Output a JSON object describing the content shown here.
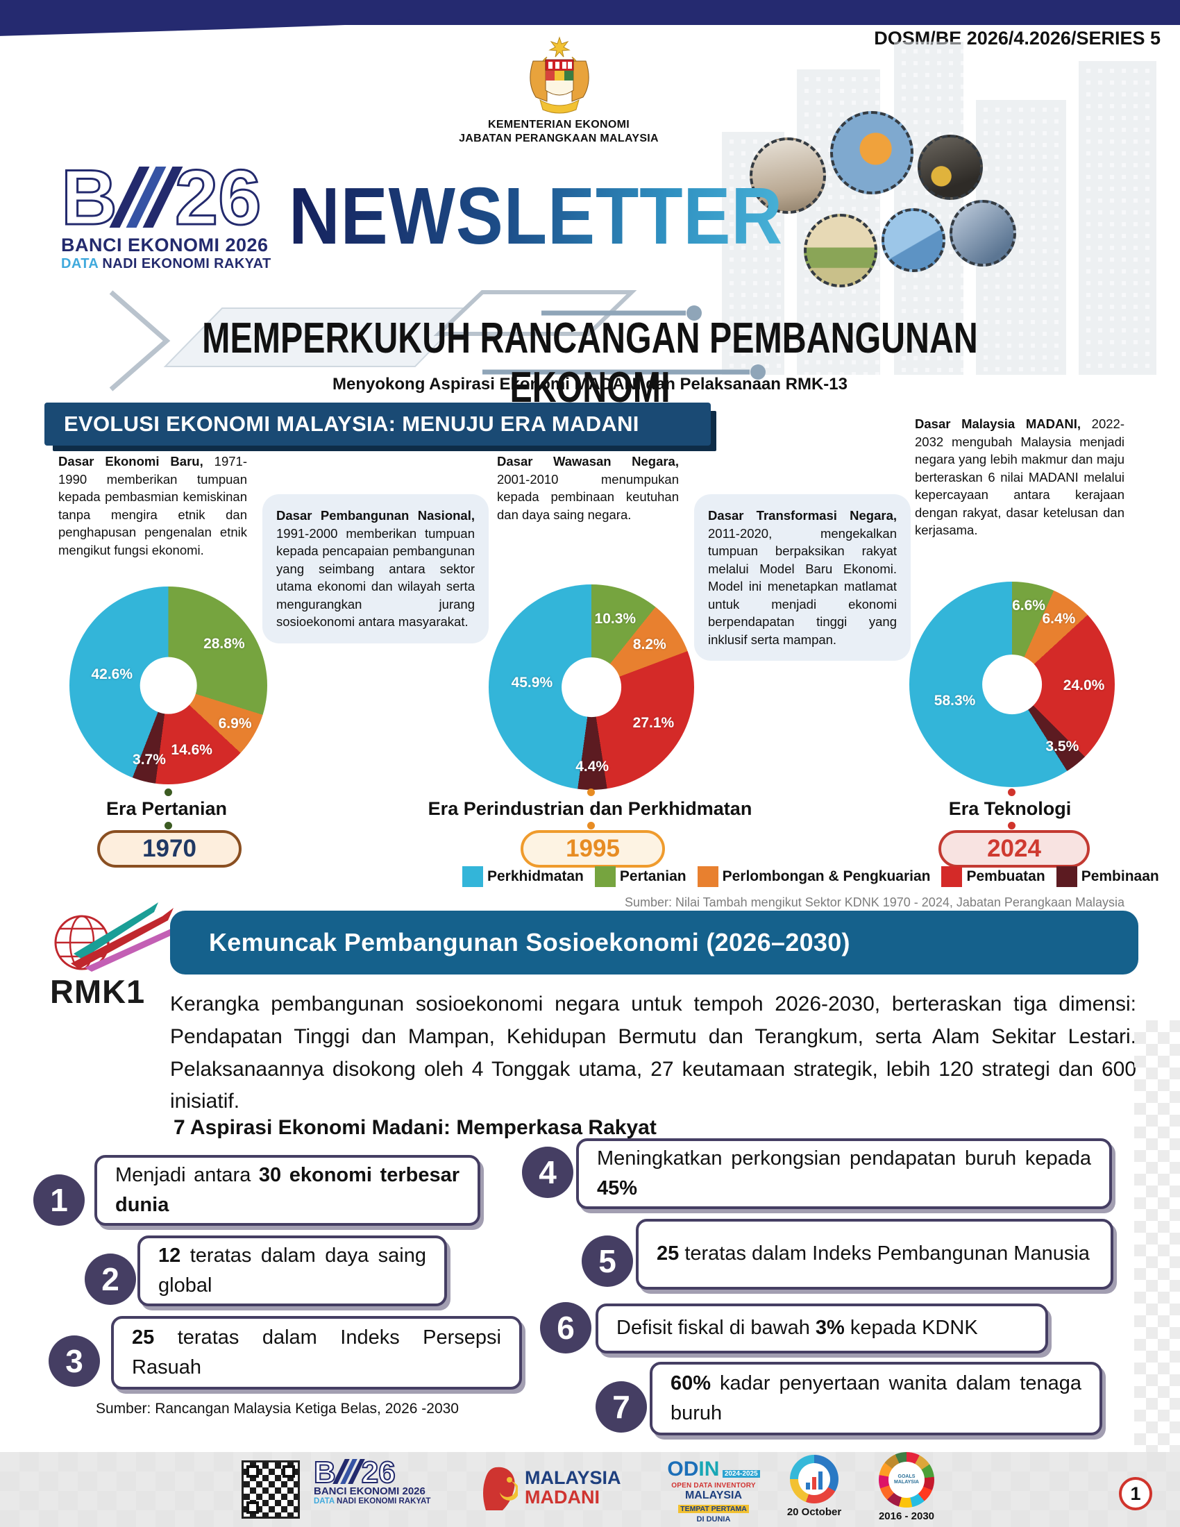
{
  "header": {
    "doc_code": "DOSM/BE 2026/4.2026/SERIES 5",
    "ministry_line1": "KEMENTERIAN EKONOMI",
    "ministry_line2": "JABATAN PERANGKAAN MALAYSIA",
    "newsletter": "NEWSLETTER",
    "be_logo": {
      "b": "B",
      "num": "26",
      "line1": "BANCI EKONOMI 2026",
      "line2_accent": "DATA",
      "line2_rest": " NADI EKONOMI RAKYAT"
    }
  },
  "title": {
    "main": "MEMPERKUKUH RANCANGAN PEMBANGUNAN EKONOMI",
    "subtitle": "Menyokong Aspirasi Ekonomi MADANI dan Pelaksanaan RMK-13"
  },
  "evolusi": {
    "heading": "EVOLUSI EKONOMI MALAYSIA: MENUJU ERA MADANI",
    "policies": [
      {
        "lead": "Dasar Ekonomi Baru,",
        "text": " 1971-1990 memberikan tumpuan kepada pembasmian kemiskinan tanpa mengira etnik dan penghapusan pengenalan etnik mengikut fungsi ekonomi.",
        "boxed": false
      },
      {
        "lead": "Dasar Pembangunan Nasional,",
        "text": " 1991-2000 memberikan tumpuan kepada pencapaian pembangunan yang seimbang antara sektor utama ekonomi dan wilayah serta mengurangkan jurang sosioekonomi antara masyarakat.",
        "boxed": true
      },
      {
        "lead": "Dasar Wawasan Negara,",
        "text": " 2001-2010 menumpukan kepada pembinaan keutuhan dan daya saing negara.",
        "boxed": false
      },
      {
        "lead": "Dasar Transformasi Negara,",
        "text": " 2011-2020, mengekalkan tumpuan berpaksikan rakyat melalui Model Baru Ekonomi. Model ini menetapkan matlamat untuk menjadi ekonomi berpendapatan tinggi yang inklusif serta mampan.",
        "boxed": true
      },
      {
        "lead": "Dasar Malaysia MADANI,",
        "text": " 2022-2032 mengubah Malaysia menjadi negara yang lebih makmur dan maju berteraskan 6 nilai MADANI melalui kepercayaan antara kerajaan dengan rakyat, dasar ketelusan dan kerjasama.",
        "boxed": false
      }
    ],
    "legend": [
      {
        "label": "Perkhidmatan",
        "color": "#33b5d9"
      },
      {
        "label": "Pertanian",
        "color": "#76a43f"
      },
      {
        "label": "Perlombongan & Pengkuarian",
        "color": "#e8802f"
      },
      {
        "label": "Pembuatan",
        "color": "#d42a28"
      },
      {
        "label": "Pembinaan",
        "color": "#5c1b21"
      }
    ],
    "source": "Sumber: Nilai Tambah mengikut Sektor KDNK 1970 - 2024, Jabatan Perangkaan Malaysia"
  },
  "chart_data": [
    {
      "type": "pie",
      "title": "Era Pertanian",
      "era": "Era Pertanian",
      "year": "1970",
      "categories": [
        "Pertanian",
        "Perlombongan & Pengkuarian",
        "Pembuatan",
        "Pembinaan",
        "Perkhidmatan"
      ],
      "values": [
        28.8,
        6.9,
        14.6,
        3.7,
        42.6
      ],
      "colors": [
        "#76a43f",
        "#e8802f",
        "#d42a28",
        "#5c1b21",
        "#33b5d9"
      ],
      "accent": "#3c5b22",
      "pill": {
        "border": "#8a4f21",
        "bg": "#fdeedd",
        "text": "#1f3864"
      }
    },
    {
      "type": "pie",
      "title": "Era Perindustrian dan Perkhidmatan",
      "era": "Era Perindustrian dan Perkhidmatan",
      "year": "1995",
      "categories": [
        "Pertanian",
        "Perlombongan & Pengkuarian",
        "Pembuatan",
        "Pembinaan",
        "Perkhidmatan"
      ],
      "values": [
        10.3,
        8.2,
        27.1,
        4.4,
        45.9
      ],
      "colors": [
        "#76a43f",
        "#e8802f",
        "#d42a28",
        "#5c1b21",
        "#33b5d9"
      ],
      "accent": "#e78c23",
      "pill": {
        "border": "#ef9b2d",
        "bg": "#fdf3e3",
        "text": "#e78c23"
      }
    },
    {
      "type": "pie",
      "title": "Era Teknologi",
      "era": "Era Teknologi",
      "year": "2024",
      "categories": [
        "Pertanian",
        "Perlombongan & Pengkuarian",
        "Pembuatan",
        "Pembinaan",
        "Perkhidmatan"
      ],
      "values": [
        6.6,
        6.4,
        24.0,
        3.5,
        58.3
      ],
      "colors": [
        "#76a43f",
        "#e8802f",
        "#d42a28",
        "#5c1b21",
        "#33b5d9"
      ],
      "accent": "#d0342c",
      "pill": {
        "border": "#c33a32",
        "bg": "#f8e3e1",
        "text": "#cf3a30"
      }
    }
  ],
  "rmk": {
    "logo_text": "RMK1",
    "heading": "Kemuncak Pembangunan Sosioekonomi (2026–2030)",
    "paragraph": "Kerangka pembangunan sosioekonomi negara untuk tempoh 2026-2030, berteraskan tiga dimensi: Pendapatan Tinggi dan Mampan, Kehidupan Bermutu dan Terangkum, serta Alam Sekitar Lestari. Pelaksanaannya disokong oleh 4 Tonggak utama, 27 keutamaan strategik, lebih 120 strategi dan 600 inisiatif.",
    "subheading": "7 Aspirasi Ekonomi Madani: Memperkasa Rakyat",
    "aspirations": [
      {
        "num": "1",
        "segments": [
          {
            "t": "Menjadi antara ",
            "b": false
          },
          {
            "t": "30 ekonomi terbesar dunia",
            "b": true
          }
        ]
      },
      {
        "num": "2",
        "segments": [
          {
            "t": "12",
            "b": true
          },
          {
            "t": " teratas dalam daya saing global",
            "b": false
          }
        ]
      },
      {
        "num": "3",
        "segments": [
          {
            "t": "25",
            "b": true
          },
          {
            "t": " teratas dalam Indeks Persepsi Rasuah",
            "b": false
          }
        ]
      },
      {
        "num": "4",
        "segments": [
          {
            "t": "Meningkatkan perkongsian pendapatan buruh kepada ",
            "b": false
          },
          {
            "t": "45%",
            "b": true
          }
        ]
      },
      {
        "num": "5",
        "segments": [
          {
            "t": "25",
            "b": true
          },
          {
            "t": " teratas dalam Indeks Pembangunan Manusia",
            "b": false
          }
        ]
      },
      {
        "num": "6",
        "segments": [
          {
            "t": "Defisit fiskal di bawah ",
            "b": false
          },
          {
            "t": "3%",
            "b": true
          },
          {
            "t": " kepada KDNK",
            "b": false
          }
        ]
      },
      {
        "num": "7",
        "segments": [
          {
            "t": "60%",
            "b": true
          },
          {
            "t": " kadar penyertaan wanita dalam tenaga buruh",
            "b": false
          }
        ]
      }
    ],
    "source": "Sumber: Rancangan Malaysia Ketiga Belas, 2026 -2030"
  },
  "footer": {
    "madani_line1": "MALAYSIA",
    "madani_line2": "MADANI",
    "odin_od": "OD",
    "odin_in": "IN",
    "odin_tag": "2024-2025",
    "odin_line1": "OPEN DATA INVENTORY",
    "odin_line2": "MALAYSIA",
    "odin_line3": "TEMPAT PERTAMA",
    "odin_line4": "DI DUNIA",
    "statsday_caption": "20 October",
    "sdg_center": "GOALS MALAYSIA",
    "sdg_caption": "2016 - 2030",
    "page_number": "1"
  },
  "colors": {
    "navy_band": "#252a70",
    "evolusi_banner": "#1a4a74",
    "rmk_banner": "#15618c",
    "aspiration_purple": "#453e63",
    "page_circle_red": "#d0342c"
  }
}
